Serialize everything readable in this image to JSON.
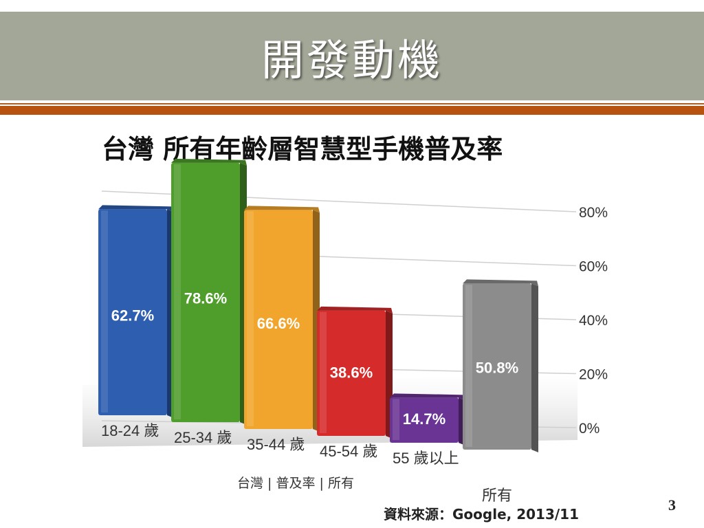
{
  "slide": {
    "title": "開發動機",
    "page_number": "3"
  },
  "chart_data": {
    "type": "bar",
    "title": "台灣 所有年齡層智慧型手機普及率",
    "categories": [
      "18-24 歲",
      "25-34 歲",
      "35-44 歲",
      "45-54 歲",
      "55 歲以上",
      "所有"
    ],
    "values": [
      62.7,
      78.6,
      66.6,
      38.6,
      14.7,
      50.8
    ],
    "value_labels": [
      "62.7%",
      "78.6%",
      "66.6%",
      "38.6%",
      "14.7%",
      "50.8%"
    ],
    "colors": [
      "#2d5eb0",
      "#4f9e2c",
      "#f2a52c",
      "#d62b2b",
      "#6a3494",
      "#8c8c8c"
    ],
    "yticks": [
      "0%",
      "20%",
      "40%",
      "60%",
      "80%"
    ],
    "ylim": [
      0,
      80
    ],
    "grid": true,
    "subtitle_caption": "台灣 | 普及率 | 所有",
    "source": "資料來源：Google, 2013/11"
  }
}
